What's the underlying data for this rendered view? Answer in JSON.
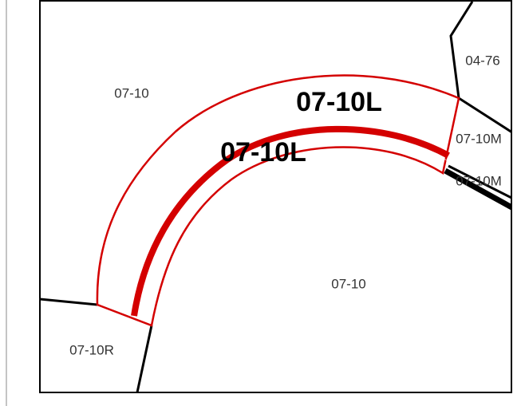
{
  "map": {
    "labels": [
      {
        "text": "07-10",
        "style": "normal"
      },
      {
        "text": "07-10L",
        "style": "bold"
      },
      {
        "text": "07-10L",
        "style": "bold"
      },
      {
        "text": "04-76",
        "style": "normal"
      },
      {
        "text": "07-10M",
        "style": "normal"
      },
      {
        "text": "07-10M",
        "style": "normal"
      },
      {
        "text": "07-10",
        "style": "normal"
      },
      {
        "text": "07-10R",
        "style": "normal"
      }
    ]
  }
}
